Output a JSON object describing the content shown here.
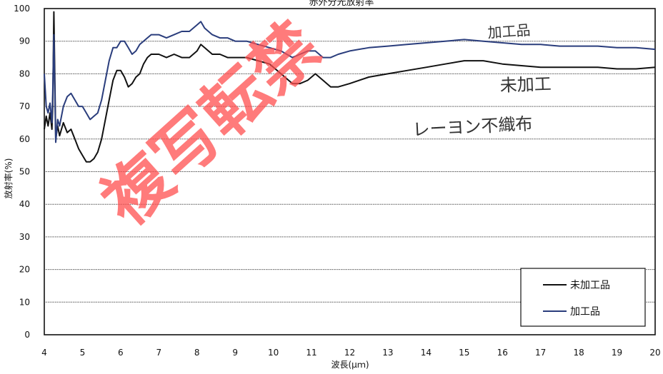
{
  "chart_data": {
    "type": "line",
    "title": "赤外分光放射率",
    "xlabel": "波長(μｍ)",
    "ylabel": "放射率(%)",
    "xlim": [
      4,
      20
    ],
    "ylim": [
      0,
      100
    ],
    "x_ticks": [
      "4",
      "5",
      "6",
      "7",
      "8",
      "9",
      "10",
      "11",
      "12",
      "13",
      "14",
      "15",
      "16",
      "17",
      "18",
      "19",
      "20"
    ],
    "y_ticks": [
      "0",
      "10",
      "20",
      "30",
      "40",
      "50",
      "60",
      "70",
      "80",
      "90",
      "100"
    ],
    "grid": true,
    "legend_position": "bottom-right",
    "series": [
      {
        "name": "未加工品",
        "color": "#111111",
        "x": [
          4.0,
          4.05,
          4.1,
          4.15,
          4.2,
          4.22,
          4.25,
          4.3,
          4.35,
          4.4,
          4.5,
          4.6,
          4.7,
          4.8,
          4.9,
          5.0,
          5.1,
          5.2,
          5.3,
          5.4,
          5.5,
          5.6,
          5.7,
          5.8,
          5.9,
          6.0,
          6.1,
          6.2,
          6.3,
          6.4,
          6.5,
          6.6,
          6.7,
          6.8,
          7.0,
          7.2,
          7.4,
          7.6,
          7.8,
          8.0,
          8.1,
          8.2,
          8.4,
          8.6,
          8.8,
          9.0,
          9.3,
          9.6,
          9.9,
          10.2,
          10.5,
          10.7,
          10.9,
          11.1,
          11.3,
          11.5,
          11.7,
          12.0,
          12.5,
          13.0,
          13.5,
          14.0,
          14.5,
          15.0,
          15.5,
          16.0,
          16.5,
          17.0,
          17.5,
          18.0,
          18.5,
          19.0,
          19.5,
          20.0
        ],
        "values": [
          63,
          67,
          64,
          68,
          63,
          70,
          99,
          60,
          64,
          61,
          65,
          62,
          63,
          60,
          57,
          55,
          53,
          53,
          54,
          56,
          60,
          66,
          72,
          78,
          81,
          81,
          79,
          76,
          77,
          79,
          80,
          83,
          85,
          86,
          86,
          85,
          86,
          85,
          85,
          87,
          89,
          88,
          86,
          86,
          85,
          85,
          85,
          84,
          83,
          80,
          77,
          77,
          78,
          80,
          78,
          76,
          76,
          77,
          79,
          80,
          81,
          82,
          83,
          84,
          84,
          83,
          82.5,
          82,
          82,
          82,
          82,
          81.5,
          81.5,
          82
        ]
      },
      {
        "name": "加工品",
        "color": "#2a3d7c",
        "x": [
          4.0,
          4.05,
          4.1,
          4.15,
          4.2,
          4.22,
          4.25,
          4.3,
          4.35,
          4.4,
          4.5,
          4.6,
          4.7,
          4.8,
          4.9,
          5.0,
          5.1,
          5.2,
          5.3,
          5.4,
          5.5,
          5.6,
          5.7,
          5.8,
          5.9,
          6.0,
          6.1,
          6.2,
          6.3,
          6.4,
          6.5,
          6.6,
          6.7,
          6.8,
          7.0,
          7.2,
          7.4,
          7.6,
          7.8,
          8.0,
          8.1,
          8.2,
          8.4,
          8.6,
          8.8,
          9.0,
          9.3,
          9.6,
          9.9,
          10.2,
          10.5,
          10.7,
          10.9,
          11.1,
          11.3,
          11.5,
          11.7,
          12.0,
          12.5,
          13.0,
          13.5,
          14.0,
          14.5,
          15.0,
          15.5,
          16.0,
          16.5,
          17.0,
          17.5,
          18.0,
          18.5,
          19.0,
          19.5,
          20.0
        ],
        "values": [
          80,
          70,
          68,
          71,
          65,
          74,
          92,
          59,
          66,
          64,
          70,
          73,
          74,
          72,
          70,
          70,
          68,
          66,
          67,
          68,
          72,
          78,
          84,
          88,
          88,
          90,
          90,
          88,
          86,
          87,
          89,
          90,
          91,
          92,
          92,
          91,
          92,
          93,
          93,
          95,
          96,
          94,
          92,
          91,
          91,
          90,
          90,
          89,
          88,
          87,
          85,
          86,
          87,
          87,
          85,
          85,
          86,
          87,
          88,
          88.5,
          89,
          89.5,
          90,
          90.5,
          90,
          89.5,
          89,
          89,
          88.5,
          88.5,
          88.5,
          88,
          88,
          87.5
        ]
      }
    ]
  },
  "annotations": {
    "handwriting_top": "加工品",
    "handwriting_mid": "未加工",
    "handwriting_low": "レーヨン不織布",
    "stamp": "複写転禁"
  }
}
